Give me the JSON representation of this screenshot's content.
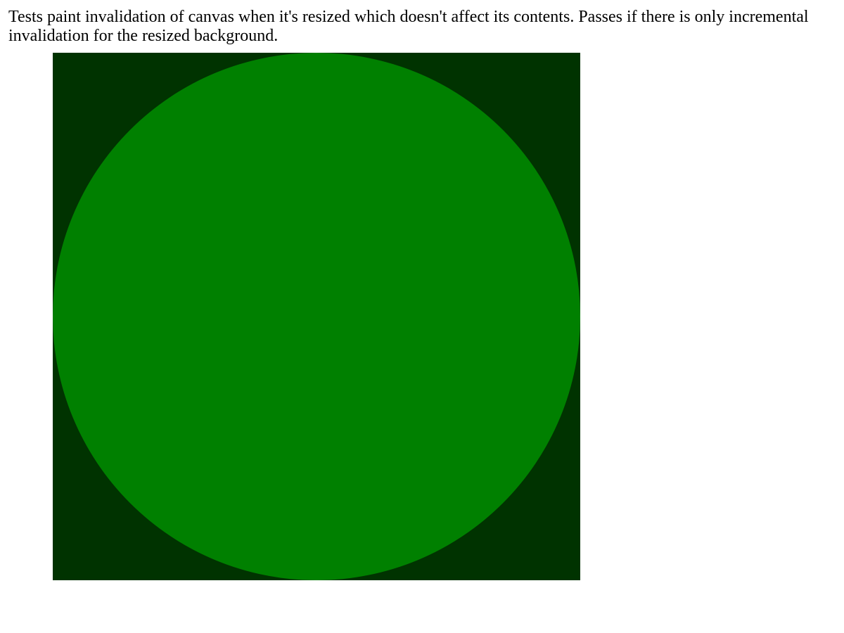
{
  "description": "Tests paint invalidation of canvas when it's resized which doesn't affect its contents. Passes if there is only incremental invalidation for the resized background.",
  "canvas": {
    "background_color": "#003300",
    "circle_color": "#008000"
  }
}
